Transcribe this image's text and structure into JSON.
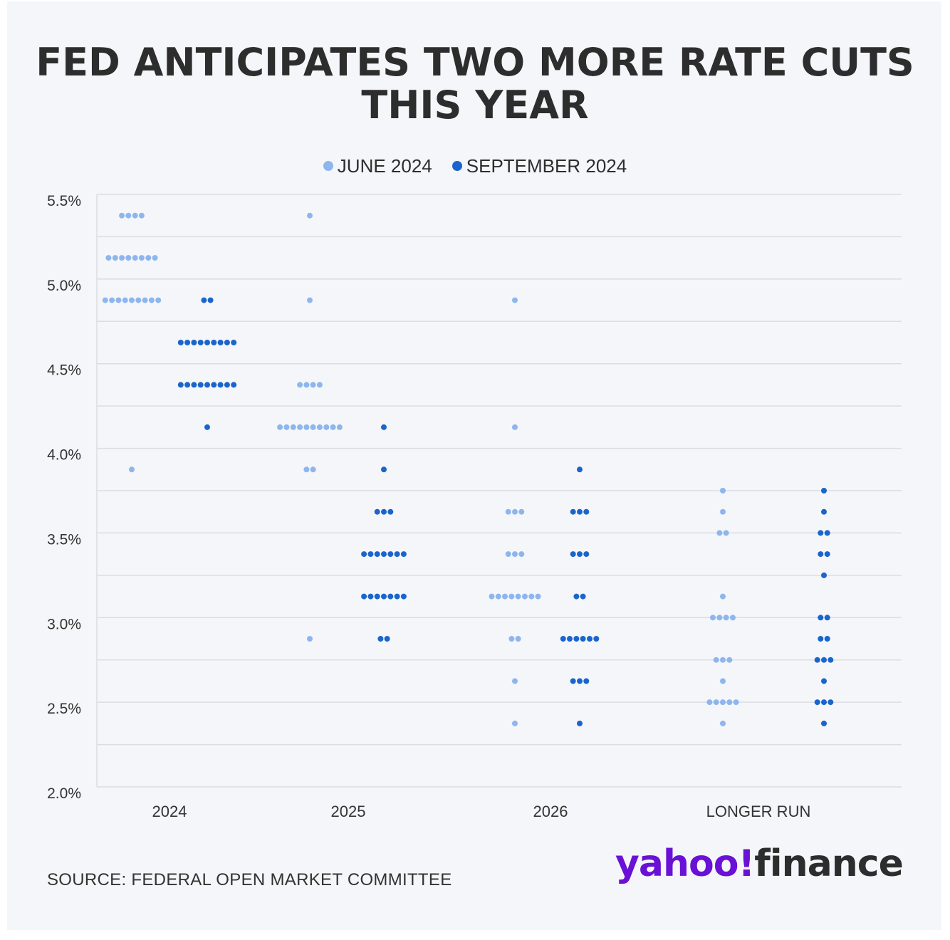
{
  "title": "FED ANTICIPATES TWO MORE RATE CUTS THIS YEAR",
  "colors": {
    "june": "#8db6ee",
    "september": "#1a65cd",
    "grid": "#dadde3",
    "axis_text": "#333333"
  },
  "legend": {
    "june_label": "JUNE 2024",
    "september_label": "SEPTEMBER 2024"
  },
  "source": "SOURCE: FEDERAL OPEN MARKET COMMITTEE",
  "logo": {
    "part1": "yahoo!",
    "part2": "finance"
  },
  "chart_data": {
    "type": "scatter",
    "subtype": "dot-plot",
    "title": "FED ANTICIPATES TWO MORE RATE CUTS THIS YEAR",
    "xlabel": "",
    "ylabel": "",
    "ylim": [
      2.0,
      5.5
    ],
    "yticks": [
      "5.5%",
      "5.0%",
      "4.5%",
      "4.0%",
      "3.5%",
      "3.0%",
      "2.5%",
      "2.0%"
    ],
    "ytick_values": [
      5.5,
      5.0,
      4.5,
      4.0,
      3.5,
      3.0,
      2.5,
      2.0
    ],
    "grid_values": [
      5.5,
      5.25,
      5.0,
      4.75,
      4.5,
      4.25,
      4.0,
      3.75,
      3.5,
      3.25,
      3.0,
      2.75,
      2.5,
      2.25,
      2.0
    ],
    "grid": true,
    "categories": [
      "2024",
      "2025",
      "2026",
      "LONGER RUN"
    ],
    "series": [
      {
        "name": "JUNE 2024",
        "points": [
          [
            {
              "rate": 5.375,
              "count": 4
            },
            {
              "rate": 5.125,
              "count": 8
            },
            {
              "rate": 4.875,
              "count": 9
            },
            {
              "rate": 3.875,
              "count": 1
            }
          ],
          [
            {
              "rate": 5.375,
              "count": 1
            },
            {
              "rate": 4.875,
              "count": 1
            },
            {
              "rate": 4.375,
              "count": 4
            },
            {
              "rate": 4.125,
              "count": 10
            },
            {
              "rate": 3.875,
              "count": 2
            },
            {
              "rate": 2.875,
              "count": 1
            }
          ],
          [
            {
              "rate": 4.875,
              "count": 1
            },
            {
              "rate": 4.125,
              "count": 1
            },
            {
              "rate": 3.625,
              "count": 3
            },
            {
              "rate": 3.375,
              "count": 3
            },
            {
              "rate": 3.125,
              "count": 8
            },
            {
              "rate": 2.875,
              "count": 2
            },
            {
              "rate": 2.625,
              "count": 1
            },
            {
              "rate": 2.375,
              "count": 1
            }
          ],
          [
            {
              "rate": 3.75,
              "count": 1
            },
            {
              "rate": 3.625,
              "count": 1
            },
            {
              "rate": 3.5,
              "count": 2
            },
            {
              "rate": 3.125,
              "count": 1
            },
            {
              "rate": 3.0,
              "count": 4
            },
            {
              "rate": 2.75,
              "count": 3
            },
            {
              "rate": 2.625,
              "count": 1
            },
            {
              "rate": 2.5,
              "count": 5
            },
            {
              "rate": 2.375,
              "count": 1
            }
          ]
        ]
      },
      {
        "name": "SEPTEMBER 2024",
        "points": [
          [
            {
              "rate": 4.875,
              "count": 2
            },
            {
              "rate": 4.625,
              "count": 9
            },
            {
              "rate": 4.375,
              "count": 9
            },
            {
              "rate": 4.125,
              "count": 1
            }
          ],
          [
            {
              "rate": 4.125,
              "count": 1
            },
            {
              "rate": 3.875,
              "count": 1
            },
            {
              "rate": 3.625,
              "count": 3
            },
            {
              "rate": 3.375,
              "count": 7
            },
            {
              "rate": 3.125,
              "count": 7
            },
            {
              "rate": 2.875,
              "count": 2
            }
          ],
          [
            {
              "rate": 3.875,
              "count": 1
            },
            {
              "rate": 3.625,
              "count": 3
            },
            {
              "rate": 3.375,
              "count": 3
            },
            {
              "rate": 3.125,
              "count": 2
            },
            {
              "rate": 2.875,
              "count": 6
            },
            {
              "rate": 2.625,
              "count": 3
            },
            {
              "rate": 2.375,
              "count": 1
            }
          ],
          [
            {
              "rate": 3.75,
              "count": 1
            },
            {
              "rate": 3.625,
              "count": 1
            },
            {
              "rate": 3.5,
              "count": 2
            },
            {
              "rate": 3.375,
              "count": 2
            },
            {
              "rate": 3.25,
              "count": 1
            },
            {
              "rate": 3.0,
              "count": 2
            },
            {
              "rate": 2.875,
              "count": 2
            },
            {
              "rate": 2.75,
              "count": 3
            },
            {
              "rate": 2.625,
              "count": 1
            },
            {
              "rate": 2.5,
              "count": 3
            },
            {
              "rate": 2.375,
              "count": 1
            }
          ]
        ]
      }
    ]
  }
}
